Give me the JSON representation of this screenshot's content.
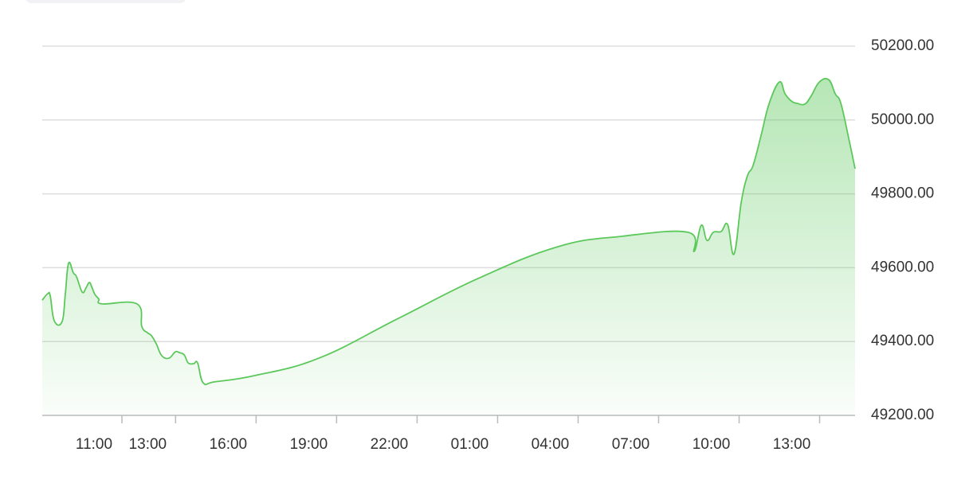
{
  "chart_data": {
    "type": "area",
    "x": [
      9.07,
      9.28,
      9.37,
      9.52,
      9.81,
      9.93,
      10.05,
      10.23,
      10.35,
      10.56,
      10.7,
      10.82,
      10.91,
      11.03,
      11.18,
      11.3,
      12.6,
      12.78,
      12.99,
      13.14,
      13.32,
      13.52,
      13.79,
      14.03,
      14.18,
      14.36,
      14.51,
      14.71,
      14.86,
      15.07,
      15.51,
      17.0,
      19.38,
      22.35,
      25.32,
      28.29,
      30.66,
      33.13,
      33.36,
      33.63,
      33.84,
      34.08,
      34.37,
      34.61,
      34.85,
      35.12,
      35.35,
      35.56,
      35.86,
      36.16,
      36.54,
      36.75,
      36.99,
      37.2,
      37.49,
      37.73,
      38.03,
      38.38,
      38.62,
      38.83,
      39.13,
      39.36
    ],
    "values": [
      49512,
      49530,
      49523,
      49456,
      49454,
      49528,
      49612,
      49586,
      49575,
      49534,
      49545,
      49560,
      49549,
      49528,
      49515,
      49502,
      49502,
      49441,
      49424,
      49416,
      49394,
      49362,
      49355,
      49372,
      49370,
      49364,
      49342,
      49340,
      49342,
      49288,
      49291,
      49308,
      49355,
      49463,
      49571,
      49657,
      49685,
      49696,
      49644,
      49715,
      49674,
      49696,
      49698,
      49717,
      49637,
      49778,
      49849,
      49877,
      49959,
      50045,
      50103,
      50071,
      50051,
      50045,
      50043,
      50066,
      50103,
      50109,
      50071,
      50045,
      49948,
      49868
    ],
    "color": "#5cc85c",
    "xlim": [
      9.07,
      39.36
    ],
    "xticks": [
      {
        "value": 11,
        "label": "11:00"
      },
      {
        "value": 13,
        "label": "13:00"
      },
      {
        "value": 16,
        "label": "16:00"
      },
      {
        "value": 19,
        "label": "19:00"
      },
      {
        "value": 22,
        "label": "22:00"
      },
      {
        "value": 25,
        "label": "01:00"
      },
      {
        "value": 28,
        "label": "04:00"
      },
      {
        "value": 31,
        "label": "07:00"
      },
      {
        "value": 34,
        "label": "10:00"
      },
      {
        "value": 37,
        "label": "13:00"
      }
    ],
    "ylim": [
      49200,
      50200
    ],
    "yticks": [
      {
        "value": 49200,
        "label": "49200.00"
      },
      {
        "value": 49400,
        "label": "49400.00"
      },
      {
        "value": 49600,
        "label": "49600.00"
      },
      {
        "value": 49800,
        "label": "49800.00"
      },
      {
        "value": 50000,
        "label": "50000.00"
      },
      {
        "value": 50200,
        "label": "50200.00"
      }
    ],
    "grid": true
  }
}
